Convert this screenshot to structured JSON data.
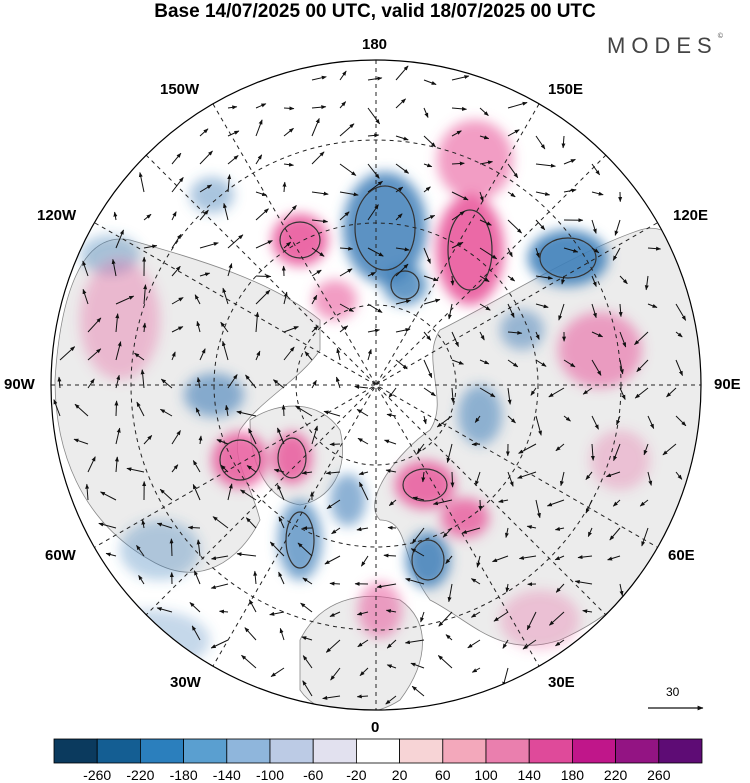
{
  "title": "Base 14/07/2025 00 UTC, valid 18/07/2025 00 UTC",
  "brand": {
    "text": "MODES",
    "mark": "©"
  },
  "map": {
    "projection": "north-polar-stereographic",
    "longitude_labels": {
      "top": "180",
      "bottom": "0",
      "left": "90W",
      "right": "90E",
      "upper_left": "150W",
      "upper_right": "150E",
      "mid_upper_left": "120W",
      "mid_upper_right": "120E",
      "mid_lower_left": "60W",
      "mid_lower_right": "60E",
      "lower_left": "30W",
      "lower_right": "30E"
    },
    "anomaly_colors": {
      "negative": "#3f7fb9",
      "positive": "#e95a9c",
      "land": "#eeeeee"
    }
  },
  "colorbar": {
    "ticks": [
      "-260",
      "-220",
      "-180",
      "-140",
      "-100",
      "-60",
      "-20",
      "20",
      "60",
      "100",
      "140",
      "180",
      "220",
      "260"
    ],
    "colors": [
      "#0b3a5e",
      "#145e93",
      "#2b7fbd",
      "#5a9fd0",
      "#8fb6dc",
      "#bccbe5",
      "#e2e1ef",
      "#ffffff",
      "#f7d4d6",
      "#f3a8bb",
      "#ea7fae",
      "#df4a9a",
      "#c0168a",
      "#931483",
      "#5e0c75"
    ]
  },
  "reference_vector": {
    "label": "30"
  }
}
